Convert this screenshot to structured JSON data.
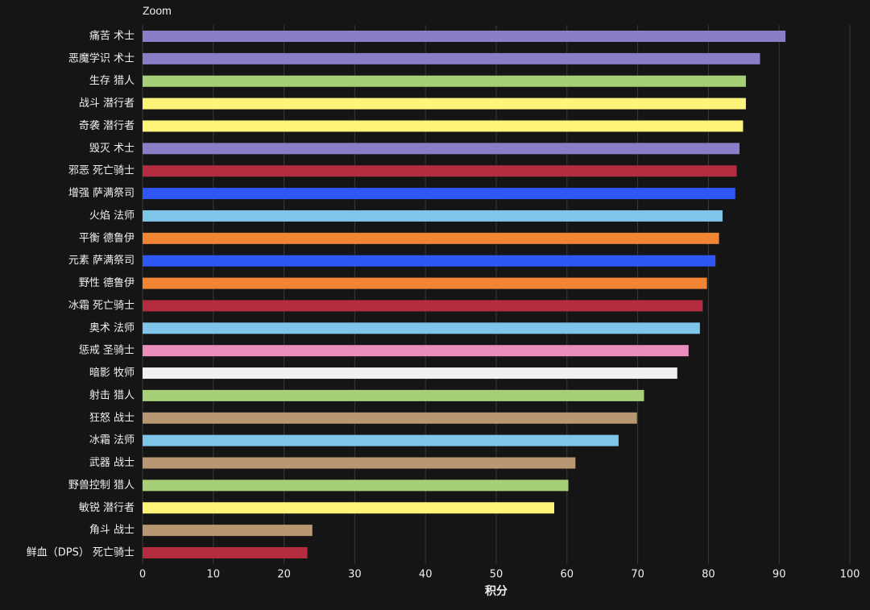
{
  "zoom_label": "Zoom",
  "chart_data": {
    "type": "bar",
    "orientation": "horizontal",
    "title": "",
    "xlabel": "积分",
    "ylabel": "",
    "xlim": [
      0,
      100
    ],
    "xticks": [
      0,
      10,
      20,
      30,
      40,
      50,
      60,
      70,
      80,
      90,
      100
    ],
    "grid": true,
    "categories": [
      "痛苦 术士",
      "恶魔学识 术士",
      "生存 猎人",
      "战斗 潜行者",
      "奇袭 潜行者",
      "毁灭 术士",
      "邪恶 死亡骑士",
      "增强 萨满祭司",
      "火焰 法师",
      "平衡 德鲁伊",
      "元素 萨满祭司",
      "野性 德鲁伊",
      "冰霜 死亡骑士",
      "奥术 法师",
      "惩戒 圣骑士",
      "暗影 牧师",
      "射击 猎人",
      "狂怒 战士",
      "冰霜 法师",
      "武器 战士",
      "野兽控制 猎人",
      "敏锐 潜行者",
      "角斗 战士",
      "鲜血（DPS） 死亡骑士"
    ],
    "values": [
      90.9,
      87.3,
      85.3,
      85.3,
      84.9,
      84.4,
      84.0,
      83.8,
      82.0,
      81.5,
      81.0,
      79.8,
      79.2,
      78.8,
      77.2,
      75.6,
      70.9,
      69.9,
      67.3,
      61.2,
      60.2,
      58.2,
      24.0,
      23.3
    ],
    "colors": [
      "#8a7fc7",
      "#8a7fc7",
      "#a7cf78",
      "#fff47a",
      "#fff47a",
      "#8a7fc7",
      "#b32c40",
      "#2f57f5",
      "#7fc5ea",
      "#f18534",
      "#2f57f5",
      "#f18534",
      "#b32c40",
      "#7fc5ea",
      "#e98dba",
      "#f0f0f0",
      "#a7cf78",
      "#b89873",
      "#7fc5ea",
      "#b89873",
      "#a7cf78",
      "#fff47a",
      "#b89873",
      "#b32c40"
    ]
  },
  "theme": {
    "background": "#151515",
    "grid": "#3a3a3a",
    "axis_text": "#f0f0f0"
  }
}
